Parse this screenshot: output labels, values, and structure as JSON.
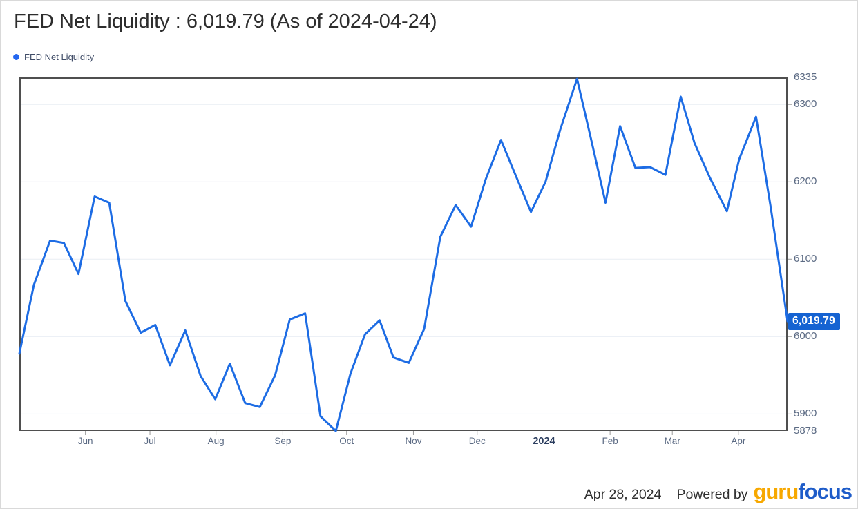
{
  "header": {
    "title": "FED Net Liquidity : 6,019.79 (As of 2024-04-24)"
  },
  "legend": {
    "label": "FED Net Liquidity",
    "marker_color": "#2467f0"
  },
  "chart_data": {
    "type": "line",
    "title": "FED Net Liquidity",
    "series_name": "FED Net Liquidity",
    "line_color": "#1d6ce4",
    "grid_color": "#e9eef4",
    "border_color": "#4f4f4f",
    "tick_color": "#9a9a9a",
    "ylim": [
      5878,
      6335
    ],
    "y_ticks": [
      6335,
      6300,
      6200,
      6100,
      6000,
      5900,
      5878
    ],
    "grid_y_values": [
      6300,
      6200,
      6100,
      6000,
      5900
    ],
    "grid": "horizontal-only",
    "legend_position": "top-left",
    "y_axis_side": "right",
    "last_value": 6019.79,
    "last_value_label": "6,019.79",
    "as_of_date": "2024-04-24",
    "x_tick_labels": [
      {
        "label": "Jun",
        "pos": 0.086
      },
      {
        "label": "Jul",
        "pos": 0.17
      },
      {
        "label": "Aug",
        "pos": 0.256
      },
      {
        "label": "Sep",
        "pos": 0.343
      },
      {
        "label": "Oct",
        "pos": 0.426
      },
      {
        "label": "Nov",
        "pos": 0.513
      },
      {
        "label": "Dec",
        "pos": 0.596
      },
      {
        "label": "2024",
        "pos": 0.683,
        "bold": true
      },
      {
        "label": "Feb",
        "pos": 0.769
      },
      {
        "label": "Mar",
        "pos": 0.85
      },
      {
        "label": "Apr",
        "pos": 0.936
      }
    ],
    "points": [
      [
        0.0,
        5978
      ],
      [
        0.019,
        6067
      ],
      [
        0.04,
        6124
      ],
      [
        0.058,
        6121
      ],
      [
        0.077,
        6081
      ],
      [
        0.098,
        6181
      ],
      [
        0.117,
        6173
      ],
      [
        0.138,
        6046
      ],
      [
        0.158,
        6005
      ],
      [
        0.177,
        6015
      ],
      [
        0.196,
        5963
      ],
      [
        0.216,
        6008
      ],
      [
        0.236,
        5949
      ],
      [
        0.255,
        5919
      ],
      [
        0.274,
        5965
      ],
      [
        0.294,
        5914
      ],
      [
        0.313,
        5909
      ],
      [
        0.333,
        5950
      ],
      [
        0.352,
        6022
      ],
      [
        0.372,
        6030
      ],
      [
        0.392,
        5897
      ],
      [
        0.412,
        5878
      ],
      [
        0.431,
        5952
      ],
      [
        0.45,
        6003
      ],
      [
        0.469,
        6021
      ],
      [
        0.487,
        5973
      ],
      [
        0.507,
        5966
      ],
      [
        0.527,
        6010
      ],
      [
        0.548,
        6129
      ],
      [
        0.568,
        6170
      ],
      [
        0.588,
        6142
      ],
      [
        0.607,
        6203
      ],
      [
        0.627,
        6254
      ],
      [
        0.647,
        6206
      ],
      [
        0.666,
        6161
      ],
      [
        0.685,
        6200
      ],
      [
        0.704,
        6267
      ],
      [
        0.726,
        6333
      ],
      [
        0.745,
        6252
      ],
      [
        0.763,
        6173
      ],
      [
        0.782,
        6272
      ],
      [
        0.802,
        6218
      ],
      [
        0.821,
        6219
      ],
      [
        0.841,
        6209
      ],
      [
        0.861,
        6310
      ],
      [
        0.879,
        6250
      ],
      [
        0.899,
        6205
      ],
      [
        0.921,
        6162
      ],
      [
        0.937,
        6229
      ],
      [
        0.959,
        6284
      ],
      [
        0.978,
        6168
      ],
      [
        1.0,
        6019.79
      ]
    ]
  },
  "footer": {
    "date": "Apr 28, 2024",
    "powered_by": "Powered by",
    "logo_guru": "guru",
    "logo_focus": "focus",
    "logo_guru_color": "#f7a800",
    "logo_focus_color": "#1e5cc9"
  }
}
